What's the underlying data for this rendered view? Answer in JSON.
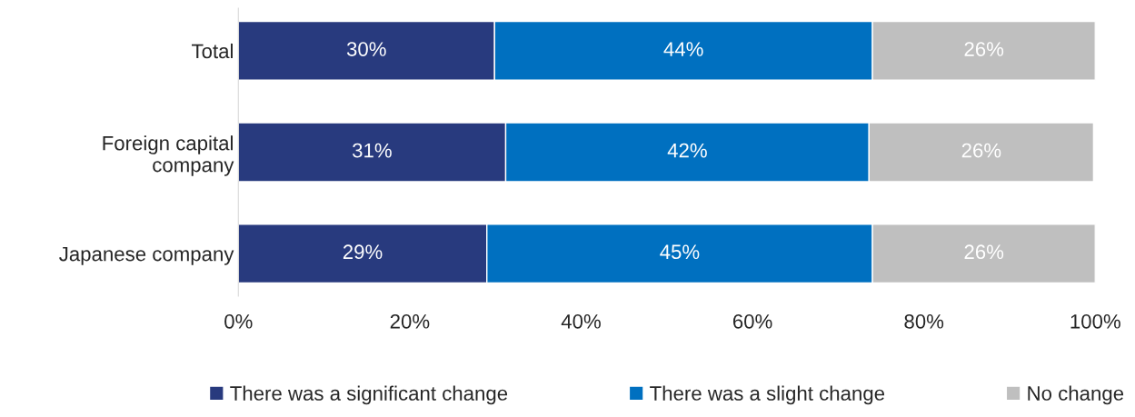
{
  "chart_data": {
    "type": "bar",
    "orientation": "horizontal",
    "stacked": true,
    "categories": [
      "Total",
      "Foreign capital\ncompany",
      "Japanese company"
    ],
    "series": [
      {
        "name": "There was a significant change",
        "color": "#283a7e",
        "values": [
          29.9,
          31.2,
          29.0
        ],
        "value_labels": [
          "30%",
          "31%",
          "29%"
        ]
      },
      {
        "name": "There was a slight change",
        "color": "#0070c0",
        "values": [
          44.1,
          42.4,
          45.0
        ],
        "value_labels": [
          "44%",
          "42%",
          "45%"
        ]
      },
      {
        "name": "No change",
        "color": "#bfbfbf",
        "values": [
          26.0,
          26.2,
          26.0
        ],
        "value_labels": [
          "26%",
          "26%",
          "26%"
        ]
      }
    ],
    "xlim": [
      0,
      100
    ],
    "xticks": [
      {
        "value": 0,
        "label": "0%"
      },
      {
        "value": 20,
        "label": "20%"
      },
      {
        "value": 40,
        "label": "40%"
      },
      {
        "value": 60,
        "label": "60%"
      },
      {
        "value": 80,
        "label": "80%"
      },
      {
        "value": 100,
        "label": "100%"
      }
    ],
    "grid": false,
    "legend": "bottom"
  }
}
